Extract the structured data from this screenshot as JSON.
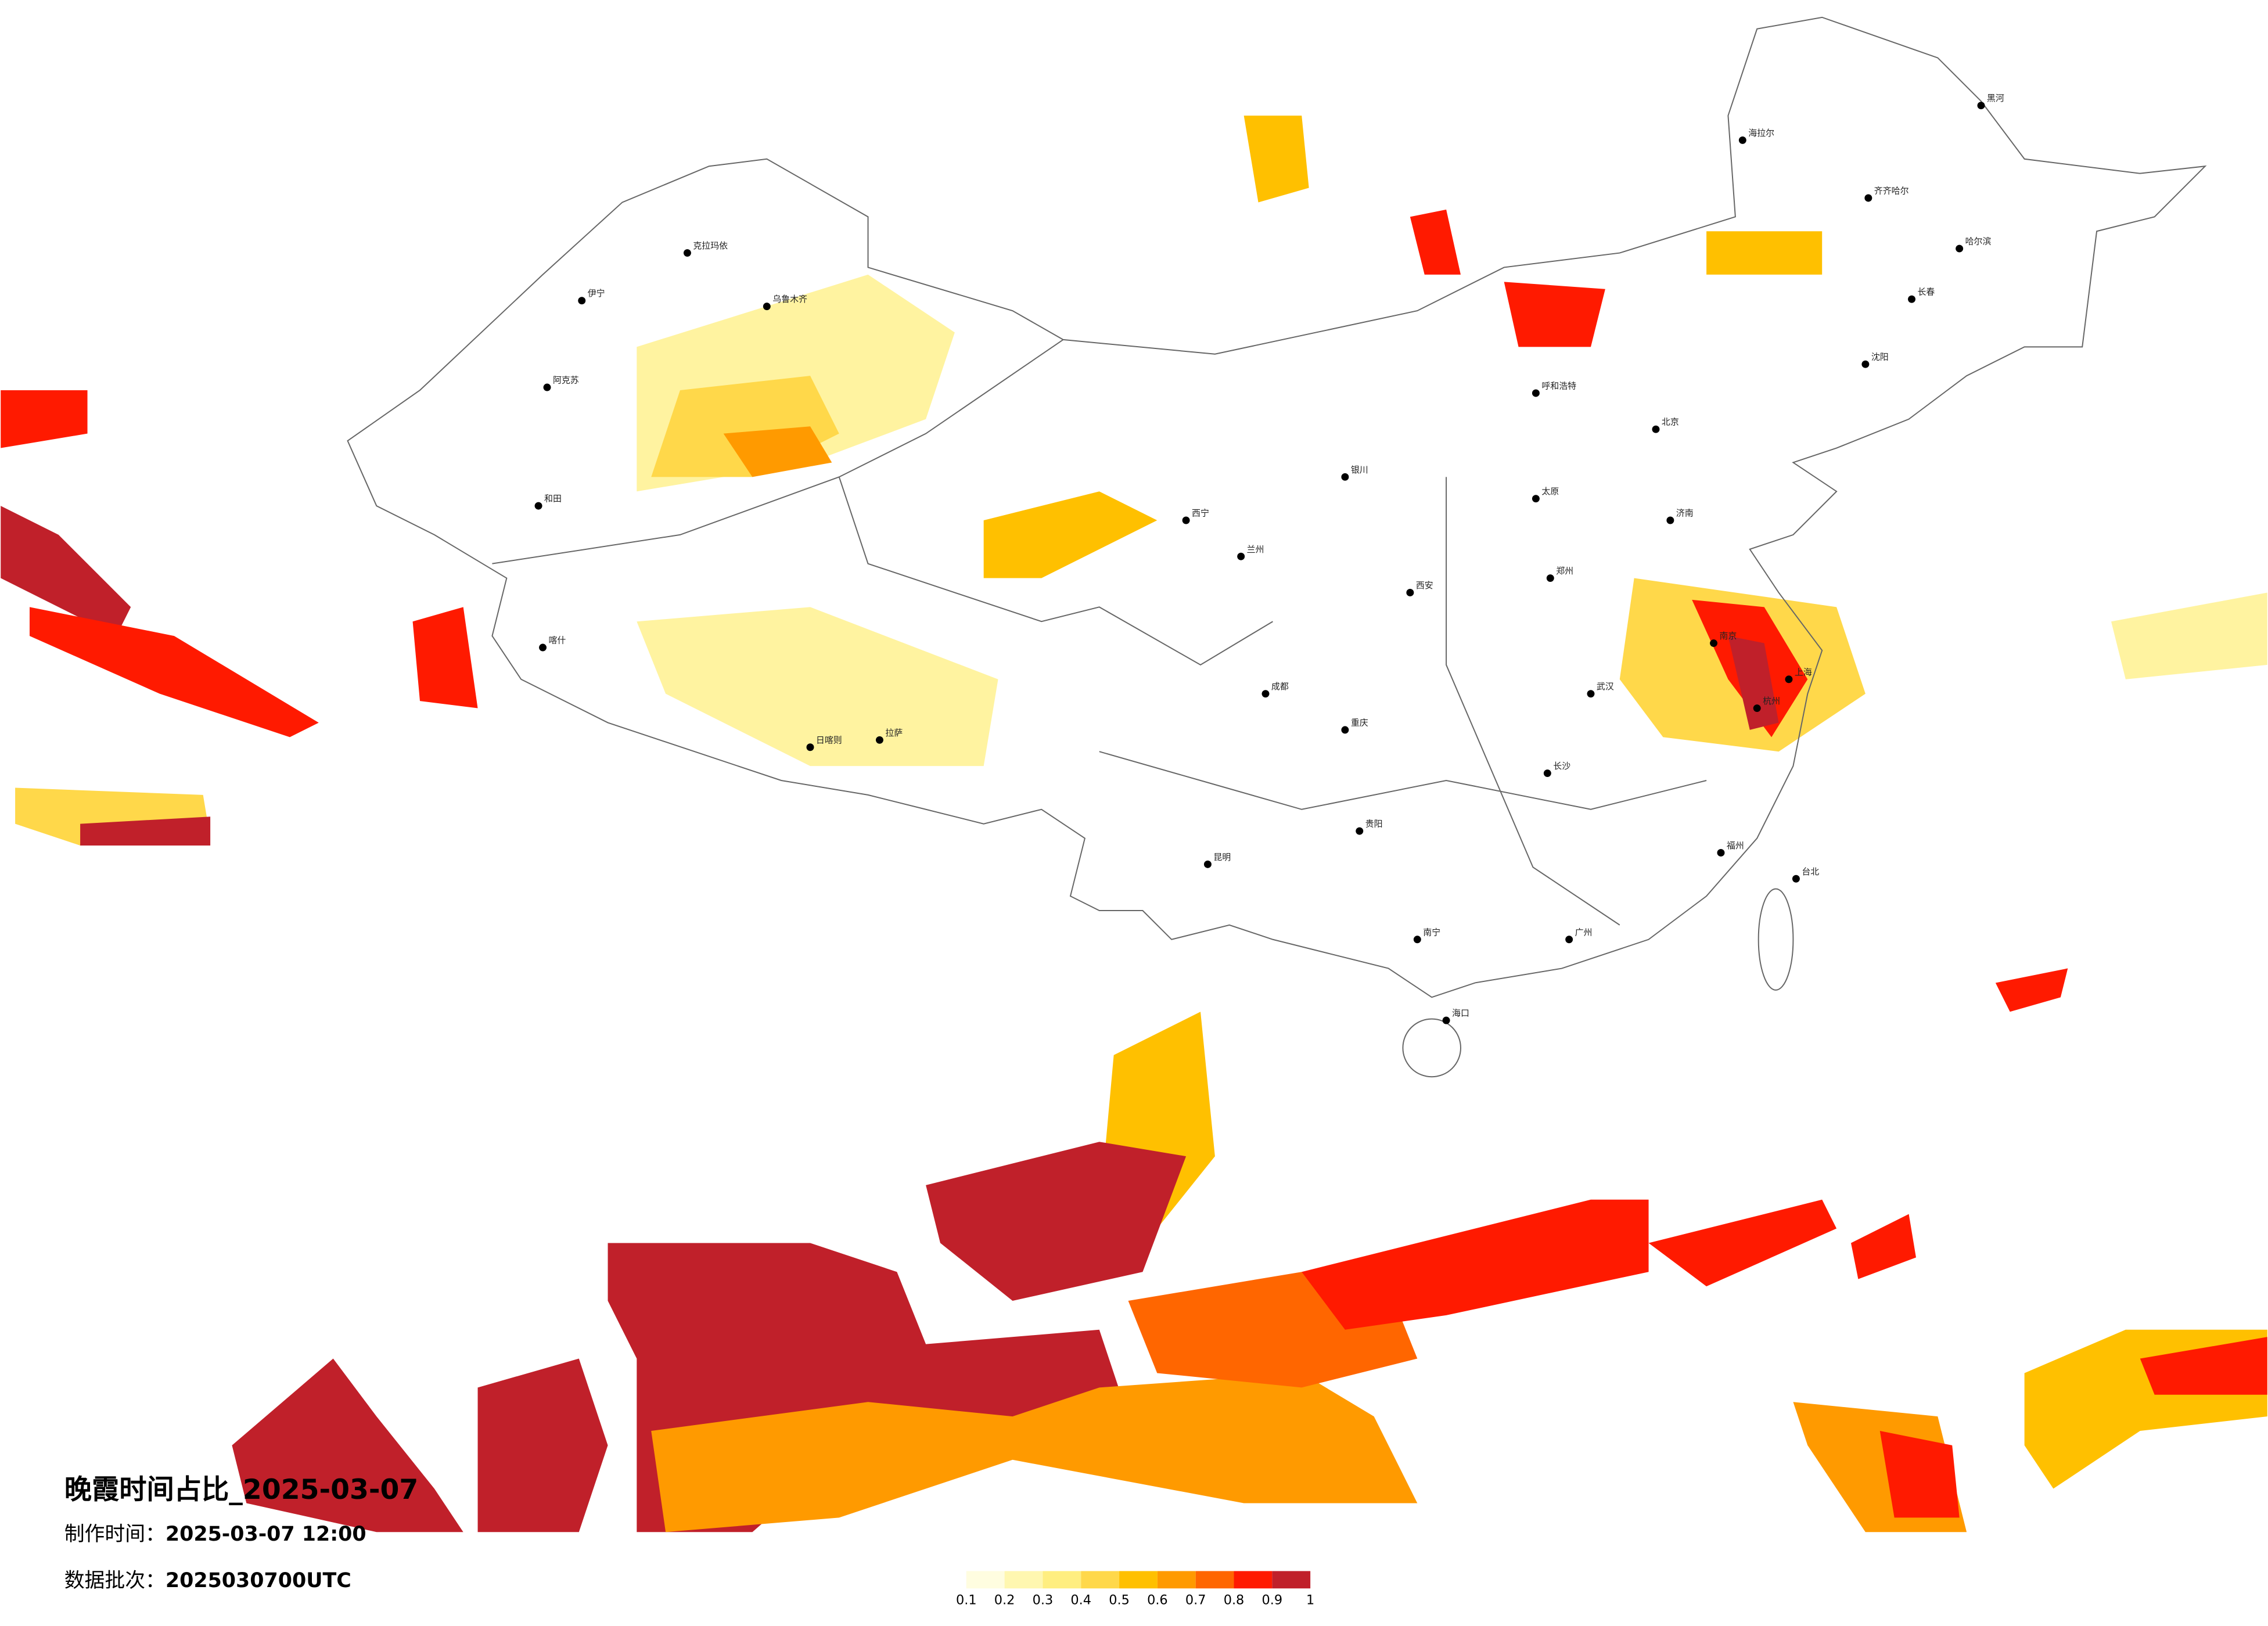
{
  "title": "晚霞时间占比_2025-03-07",
  "info": {
    "made_label": "制作时间：",
    "made": "2025-03-07 12:00",
    "batch_label": "数据批次：",
    "batch": "2025030700UTC"
  },
  "legend": {
    "colors": [
      "#fffde0",
      "#fff7b0",
      "#ffee80",
      "#ffd84a",
      "#ffc000",
      "#ff9a00",
      "#ff6600",
      "#ff1a00",
      "#c0202a"
    ],
    "ticks": [
      0.1,
      0.2,
      0.3,
      0.4,
      0.5,
      0.6,
      0.7,
      0.8,
      0.9,
      1
    ]
  },
  "cities": [
    "乌鲁木齐",
    "克拉玛依",
    "伊宁",
    "阿克苏",
    "和田",
    "喀什",
    "日喀则",
    "拉萨",
    "西宁",
    "兰州",
    "银川",
    "呼和浩特",
    "太原",
    "北京",
    "济南",
    "郑州",
    "西安",
    "成都",
    "重庆",
    "贵阳",
    "昆明",
    "南宁",
    "海口",
    "广州",
    "长沙",
    "武汉",
    "南京",
    "上海",
    "杭州",
    "福州",
    "沈阳",
    "长春",
    "哈尔滨",
    "齐齐哈尔",
    "海拉尔",
    "黑河",
    "台北"
  ]
}
